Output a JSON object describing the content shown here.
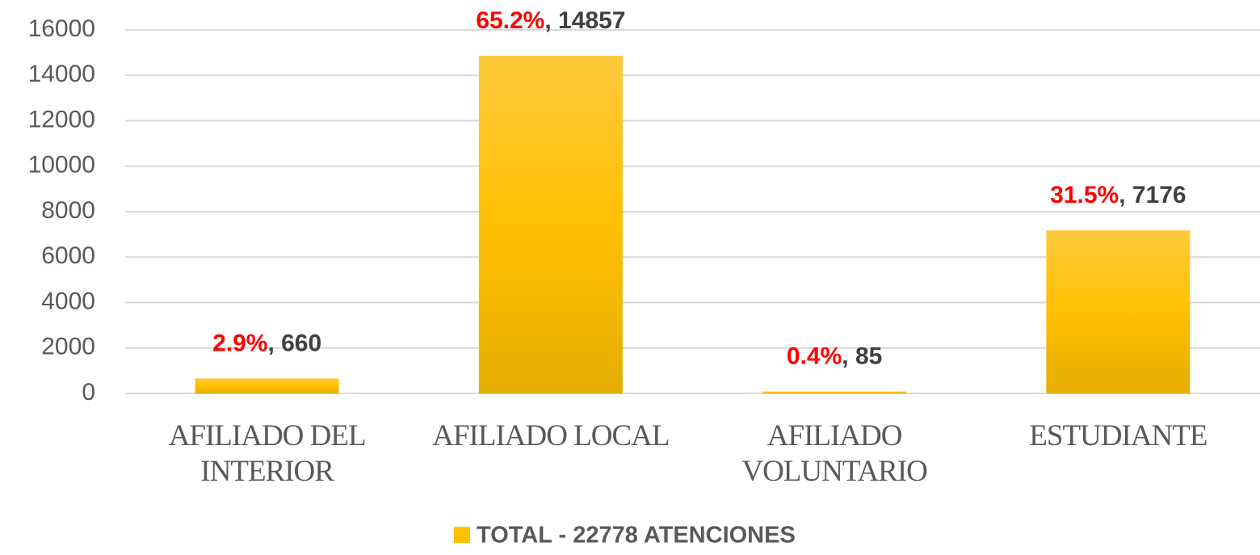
{
  "chart_data": {
    "type": "bar",
    "categories": [
      "AFILIADO DEL INTERIOR",
      "AFILIADO LOCAL",
      "AFILIADO VOLUNTARIO",
      "ESTUDIANTE"
    ],
    "series": [
      {
        "name": "TOTAL - 22778 ATENCIONES",
        "color": "#FFC000",
        "values": [
          660,
          14857,
          85,
          7176
        ]
      }
    ],
    "percent_labels": [
      "2.9%",
      "65.2%",
      "0.4%",
      "31.5%"
    ],
    "label_separator": ", ",
    "ylim": [
      0,
      16000
    ],
    "yticks": [
      0,
      2000,
      4000,
      6000,
      8000,
      10000,
      12000,
      14000,
      16000
    ],
    "grid": true,
    "legend": "bottom"
  }
}
